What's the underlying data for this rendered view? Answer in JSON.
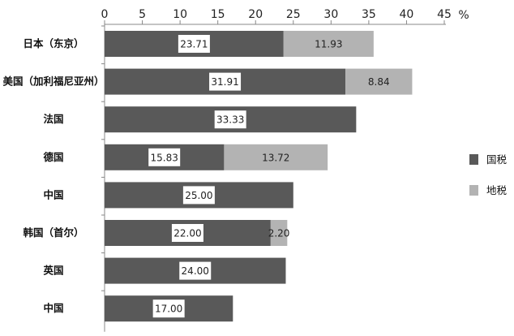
{
  "chart_data": {
    "type": "bar",
    "orientation": "horizontal",
    "stacked": true,
    "unit": "%",
    "xlim": [
      0,
      45
    ],
    "xticks": [
      0,
      5,
      10,
      15,
      20,
      25,
      30,
      35,
      40,
      45
    ],
    "axis_position": "top",
    "grid": false,
    "legend_position": "right",
    "categories": [
      "日本（东京）",
      "美国（加利福尼亚州）",
      "法国",
      "德国",
      "中国",
      "韩国（首尔）",
      "英国",
      "中国"
    ],
    "series": [
      {
        "name": "国税",
        "color": "#595959",
        "values": [
          23.71,
          31.91,
          33.33,
          15.83,
          25.0,
          22.0,
          24.0,
          17.0
        ],
        "labels": [
          "23.71",
          "31.91",
          "33.33",
          "15.83",
          "25.00",
          "22.00",
          "24.00",
          "17.00"
        ]
      },
      {
        "name": "地税",
        "color": "#b3b3b3",
        "values": [
          11.93,
          8.84,
          null,
          13.72,
          null,
          2.2,
          null,
          null
        ],
        "labels": [
          "11.93",
          "8.84",
          null,
          "13.72",
          null,
          "2.20",
          null,
          null
        ]
      }
    ]
  }
}
